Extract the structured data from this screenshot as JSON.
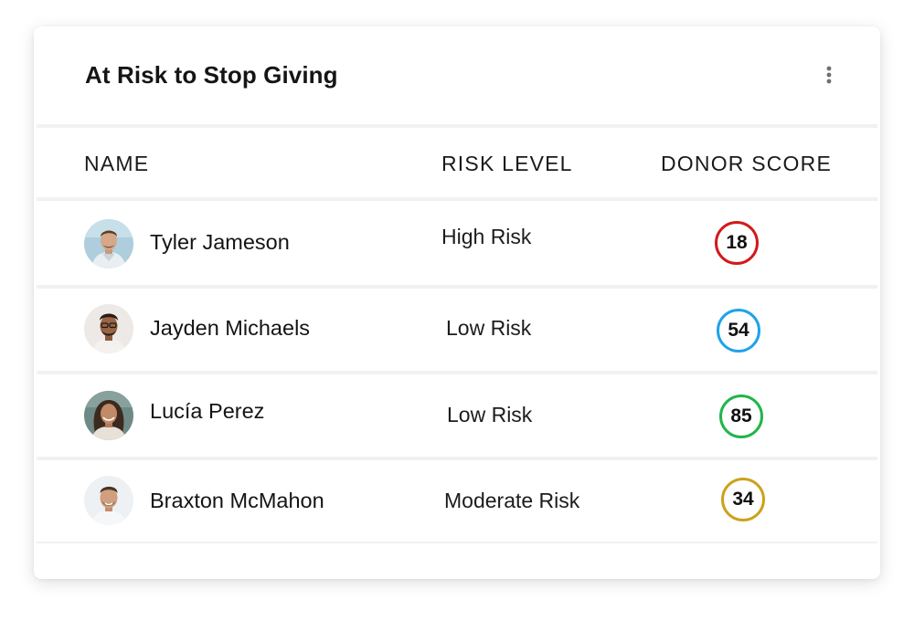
{
  "card": {
    "title": "At Risk to Stop Giving",
    "menu_icon": "more-vertical-icon"
  },
  "table": {
    "columns": {
      "name": "NAME",
      "risk": "RISK LEVEL",
      "score": "DONOR SCORE"
    },
    "rows": [
      {
        "name": "Tyler Jameson",
        "risk_level": "High Risk",
        "donor_score": "18",
        "score_color": "#d21a1a",
        "avatar": "avatar-tyler"
      },
      {
        "name": "Jayden Michaels",
        "risk_level": "Low Risk",
        "donor_score": "54",
        "score_color": "#1ea3ea",
        "avatar": "avatar-jayden"
      },
      {
        "name": "Lucía Perez",
        "risk_level": "Low Risk",
        "donor_score": "85",
        "score_color": "#22b54a",
        "avatar": "avatar-lucia"
      },
      {
        "name": "Braxton McMahon",
        "risk_level": "Moderate Risk",
        "donor_score": "34",
        "score_color": "#cca21c",
        "avatar": "avatar-braxton"
      }
    ]
  }
}
